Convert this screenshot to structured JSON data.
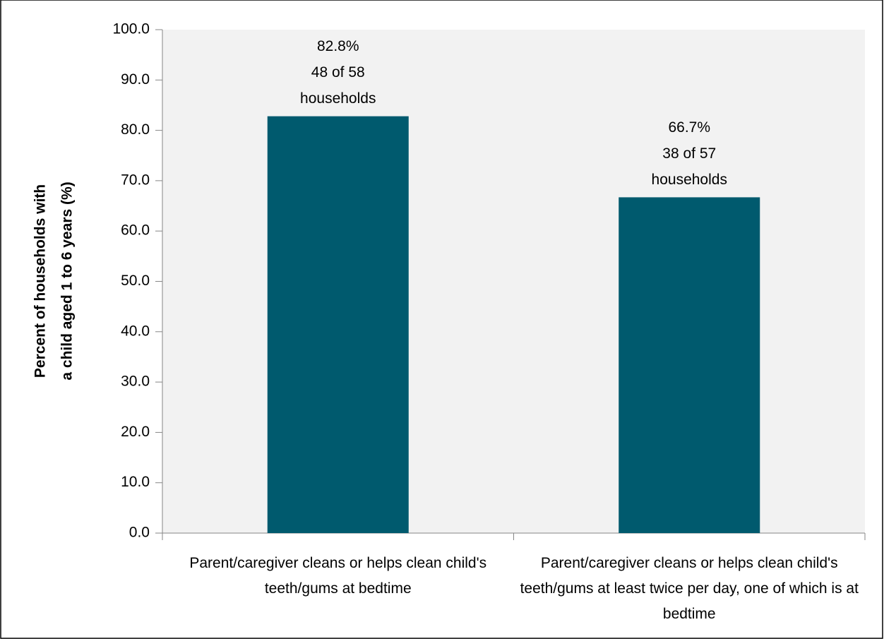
{
  "chart_data": {
    "type": "bar",
    "y_label": [
      "Percent of households with",
      "a child aged 1 to 6 years (%)"
    ],
    "categories": [
      "Parent/caregiver cleans or helps clean child's teeth/gums at bedtime",
      "Parent/caregiver cleans or helps clean child's teeth/gums at least twice per day, one of which is at bedtime"
    ],
    "values": [
      82.8,
      66.7
    ],
    "value_labels": [
      "82.8%",
      "66.7%"
    ],
    "counts": [
      [
        "48 of 58",
        "households"
      ],
      [
        "38 of 57",
        "households"
      ]
    ],
    "color": "#005a6e",
    "ylim": [
      0,
      100
    ],
    "yticks": [
      {
        "value": 0,
        "label": "0.0"
      },
      {
        "value": 10,
        "label": "10.0"
      },
      {
        "value": 20,
        "label": "20.0"
      },
      {
        "value": 30,
        "label": "30.0"
      },
      {
        "value": 40,
        "label": "40.0"
      },
      {
        "value": 50,
        "label": "50.0"
      },
      {
        "value": 60,
        "label": "60.0"
      },
      {
        "value": 70,
        "label": "70.0"
      },
      {
        "value": 80,
        "label": "80.0"
      },
      {
        "value": 90,
        "label": "90.0"
      },
      {
        "value": 100,
        "label": "100.0"
      }
    ],
    "grid": false
  }
}
